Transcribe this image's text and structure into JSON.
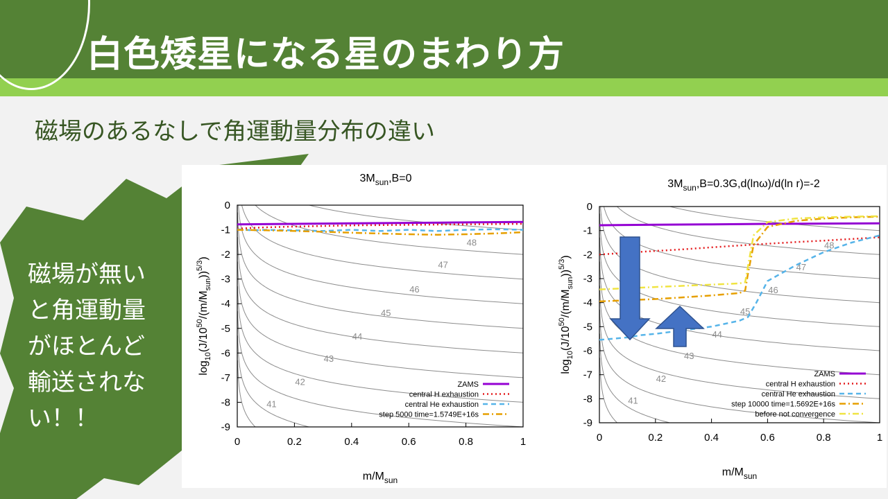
{
  "slide": {
    "title": "白色矮星になる星のまわり方",
    "subtitle": "磁場のあるなしで角運動量分布の違い",
    "callout_lines": [
      "磁場が無い",
      "と角運動量",
      "がほとんど",
      "輸送されな",
      "い！！"
    ]
  },
  "colors": {
    "header_dark": "#548235",
    "header_light": "#92d050",
    "callout": "#548235",
    "arrow": "#4472c4"
  },
  "chart_data": [
    {
      "type": "line",
      "title_main": "3M",
      "title_sub": "sun",
      "title_rest": ",B=0",
      "ylabel": "log10(J/10^50/(m/Msun)^5/3)",
      "xlabel_main": "m/M",
      "xlabel_sub": "sun",
      "xlim": [
        0,
        1
      ],
      "ylim": [
        -9,
        0
      ],
      "xticks": [
        "0",
        "0.2",
        "0.4",
        "0.6",
        "0.8",
        "1"
      ],
      "yticks": [
        "0",
        "-1",
        "-2",
        "-3",
        "-4",
        "-5",
        "-6",
        "-7",
        "-8",
        "-9"
      ],
      "contour_labels": [
        {
          "text": "48",
          "x": 0.82,
          "y": -1.65
        },
        {
          "text": "47",
          "x": 0.72,
          "y": -2.55
        },
        {
          "text": "46",
          "x": 0.62,
          "y": -3.55
        },
        {
          "text": "45",
          "x": 0.52,
          "y": -4.5
        },
        {
          "text": "44",
          "x": 0.42,
          "y": -5.45
        },
        {
          "text": "43",
          "x": 0.32,
          "y": -6.35
        },
        {
          "text": "42",
          "x": 0.22,
          "y": -7.3
        },
        {
          "text": "41",
          "x": 0.12,
          "y": -8.2
        }
      ],
      "series": [
        {
          "name": "ZAMS",
          "color": "#9400d3",
          "dash": "solid",
          "x": [
            0,
            0.2,
            0.4,
            0.6,
            0.8,
            1.0
          ],
          "y": [
            -0.78,
            -0.76,
            -0.74,
            -0.72,
            -0.7,
            -0.68
          ]
        },
        {
          "name": "central H exhaustion",
          "color": "#e41a1c",
          "dash": "dot",
          "x": [
            0,
            0.1,
            0.2,
            0.4,
            0.6,
            0.8,
            1.0
          ],
          "y": [
            -0.95,
            -0.9,
            -0.87,
            -0.82,
            -0.8,
            -0.78,
            -0.76
          ]
        },
        {
          "name": "central He exhaustion",
          "color": "#56b4e9",
          "dash": "dash",
          "x": [
            0,
            0.05,
            0.1,
            0.2,
            0.3,
            0.4,
            0.5,
            0.6,
            0.7,
            0.8,
            0.9,
            1.0
          ],
          "y": [
            -0.98,
            -1.02,
            -1.0,
            -1.02,
            -1.05,
            -1.0,
            -1.05,
            -1.0,
            -1.05,
            -1.0,
            -0.98,
            -1.0
          ]
        },
        {
          "name": "step 5000 time=1.5749E+16s",
          "color": "#e69f00",
          "dash": "dashdot",
          "x": [
            0,
            0.1,
            0.2,
            0.3,
            0.4,
            0.5,
            0.6,
            0.7,
            0.8,
            0.9,
            1.0
          ],
          "y": [
            -1.0,
            -1.02,
            -1.05,
            -1.08,
            -1.12,
            -1.15,
            -1.18,
            -1.2,
            -1.18,
            -1.15,
            -1.1
          ]
        }
      ],
      "legend_position": "bottom-right"
    },
    {
      "type": "line",
      "title_main": "3M",
      "title_sub": "sun",
      "title_rest": ",B=0.3G,d(lnω)/d(ln r)=-2",
      "ylabel": "log10(J/10^50/(m/Msun)^5/3)",
      "xlabel_main": "m/M",
      "xlabel_sub": "sun",
      "xlim": [
        0,
        1
      ],
      "ylim": [
        -9,
        0
      ],
      "xticks": [
        "0",
        "0.2",
        "0.4",
        "0.6",
        "0.8",
        "1"
      ],
      "yticks": [
        "0",
        "-1",
        "-2",
        "-3",
        "-4",
        "-5",
        "-6",
        "-7",
        "-8",
        "-9"
      ],
      "contour_labels": [
        {
          "text": "48",
          "x": 0.82,
          "y": -1.75
        },
        {
          "text": "47",
          "x": 0.72,
          "y": -2.65
        },
        {
          "text": "46",
          "x": 0.62,
          "y": -3.6
        },
        {
          "text": "45",
          "x": 0.52,
          "y": -4.5
        },
        {
          "text": "44",
          "x": 0.42,
          "y": -5.45
        },
        {
          "text": "43",
          "x": 0.32,
          "y": -6.35
        },
        {
          "text": "42",
          "x": 0.22,
          "y": -7.3
        },
        {
          "text": "41",
          "x": 0.12,
          "y": -8.2
        }
      ],
      "series": [
        {
          "name": "ZAMS",
          "color": "#9400d3",
          "dash": "solid",
          "x": [
            0,
            0.2,
            0.4,
            0.6,
            0.8,
            1.0
          ],
          "y": [
            -0.78,
            -0.76,
            -0.74,
            -0.72,
            -0.71,
            -0.7
          ]
        },
        {
          "name": "central H exhaustion",
          "color": "#e41a1c",
          "dash": "dot",
          "x": [
            0,
            0.1,
            0.2,
            0.3,
            0.4,
            0.5,
            0.6,
            0.7,
            0.8,
            0.9,
            1.0
          ],
          "y": [
            -2.0,
            -1.92,
            -1.85,
            -1.78,
            -1.7,
            -1.62,
            -1.55,
            -1.48,
            -1.42,
            -1.35,
            -1.28
          ]
        },
        {
          "name": "central He exhaustion",
          "color": "#56b4e9",
          "dash": "dash",
          "x": [
            0,
            0.05,
            0.1,
            0.15,
            0.2,
            0.3,
            0.4,
            0.5,
            0.53,
            0.56,
            0.6,
            0.7,
            0.8,
            0.9,
            1.0
          ],
          "y": [
            -5.55,
            -5.5,
            -5.45,
            -5.35,
            -5.3,
            -5.15,
            -5.0,
            -4.75,
            -4.6,
            -4.0,
            -3.1,
            -2.45,
            -1.9,
            -1.5,
            -1.2
          ]
        },
        {
          "name": "step 10000 time=1.5692E+16s",
          "color": "#e69f00",
          "dash": "dashdot",
          "x": [
            0,
            0.1,
            0.2,
            0.3,
            0.4,
            0.5,
            0.52,
            0.53,
            0.55,
            0.6,
            0.7,
            0.8,
            0.9,
            1.0
          ],
          "y": [
            -3.95,
            -3.9,
            -3.85,
            -3.78,
            -3.7,
            -3.6,
            -3.5,
            -2.8,
            -1.6,
            -0.85,
            -0.6,
            -0.5,
            -0.45,
            -0.42
          ]
        },
        {
          "name": "before not convergence",
          "color": "#f0e442",
          "dash": "dashdot",
          "x": [
            0,
            0.1,
            0.2,
            0.3,
            0.4,
            0.5,
            0.52,
            0.53,
            0.55,
            0.6,
            0.7,
            0.8,
            0.9,
            1.0
          ],
          "y": [
            -3.45,
            -3.4,
            -3.35,
            -3.3,
            -3.25,
            -3.2,
            -3.15,
            -2.5,
            -1.2,
            -0.65,
            -0.5,
            -0.45,
            -0.42,
            -0.4
          ]
        }
      ],
      "legend_position": "bottom-right"
    }
  ]
}
